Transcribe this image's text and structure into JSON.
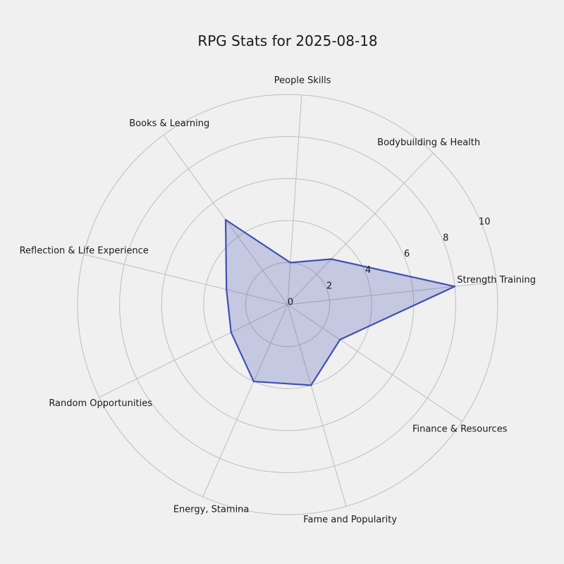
{
  "chart_data": {
    "type": "radar",
    "title": "RPG Stats for 2025-08-18",
    "categories": [
      "Strength Training",
      "Bodybuilding & Health",
      "People Skills",
      "Books & Learning",
      "Reflection & Life Experience",
      "Random Opportunities",
      "Energy, Stamina",
      "Fame and Popularity",
      "Finance & Resources"
    ],
    "series": [
      {
        "values": [
          8,
          3,
          2,
          5,
          3,
          3,
          4,
          4,
          3
        ]
      }
    ],
    "rlim": [
      0,
      10
    ],
    "rticks": [
      0,
      2,
      4,
      6,
      8,
      10
    ],
    "tick_labels": [
      "0",
      "2",
      "4",
      "6",
      "8",
      "10"
    ],
    "grid": true,
    "colors": {
      "line": "#3f51b5",
      "fill": "#3f51b5",
      "grid": "#bdbdbd",
      "background": "#f0f0f0"
    }
  }
}
